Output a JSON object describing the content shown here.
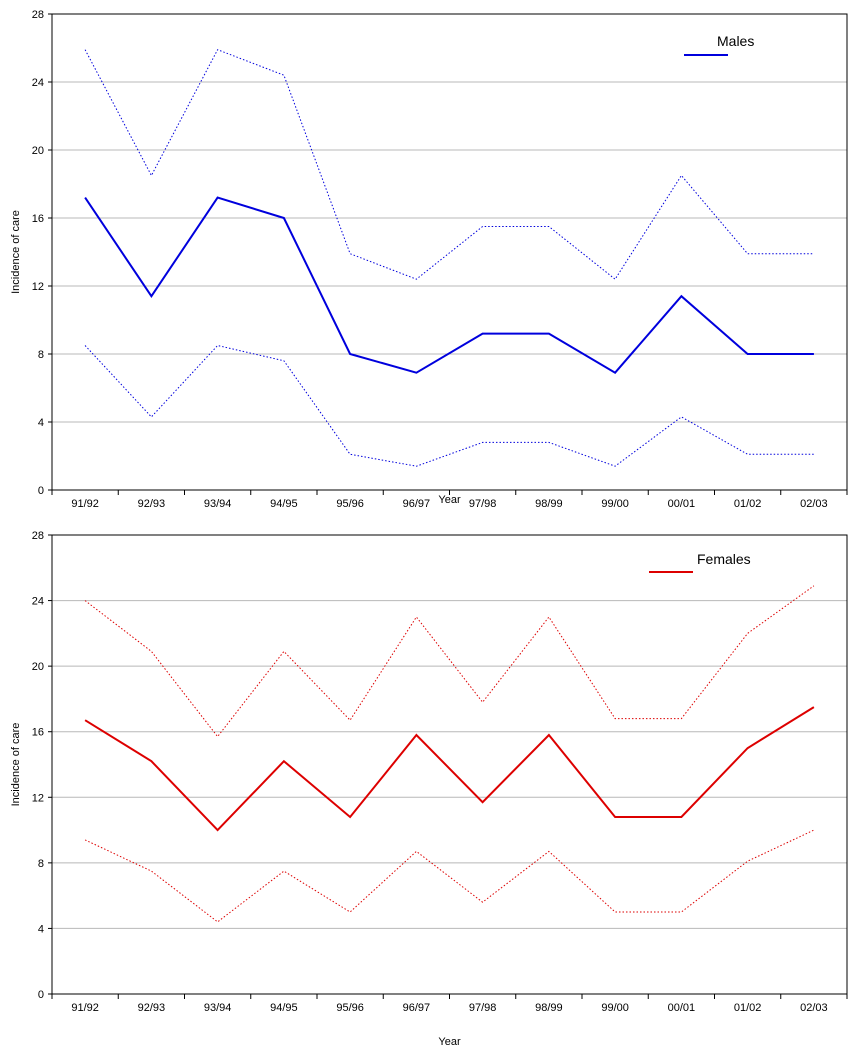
{
  "chart_data": [
    {
      "type": "line",
      "categories": [
        "91/92",
        "92/93",
        "93/94",
        "94/95",
        "95/96",
        "96/97",
        "97/98",
        "98/99",
        "99/00",
        "00/01",
        "01/02",
        "02/03"
      ],
      "xlabel": "Year",
      "ylabel": "Incidence of care",
      "ylim": [
        0,
        28
      ],
      "yticks": [
        0,
        4,
        8,
        12,
        16,
        20,
        24,
        28
      ],
      "grid": "horizontal",
      "legend_position": "top-right",
      "color": "#0000dd",
      "series": [
        {
          "name": "Males",
          "role": "estimate",
          "style": "solid",
          "values": [
            17.2,
            11.4,
            17.2,
            16.0,
            8.0,
            6.9,
            9.2,
            9.2,
            6.9,
            11.4,
            8.0,
            8.0
          ]
        },
        {
          "role": "upper",
          "style": "dotted",
          "values": [
            25.9,
            18.5,
            25.9,
            24.4,
            13.9,
            12.4,
            15.5,
            15.5,
            12.4,
            18.5,
            13.9,
            13.9
          ]
        },
        {
          "role": "lower",
          "style": "dotted",
          "values": [
            8.5,
            4.3,
            8.5,
            7.6,
            2.1,
            1.4,
            2.8,
            2.8,
            1.4,
            4.3,
            2.1,
            2.1
          ]
        }
      ]
    },
    {
      "type": "line",
      "categories": [
        "91/92",
        "92/93",
        "93/94",
        "94/95",
        "95/96",
        "96/97",
        "97/98",
        "98/99",
        "99/00",
        "00/01",
        "01/02",
        "02/03"
      ],
      "xlabel": "Year",
      "ylabel": "Incidence of care",
      "ylim": [
        0,
        28
      ],
      "yticks": [
        0,
        4,
        8,
        12,
        16,
        20,
        24,
        28
      ],
      "grid": "horizontal",
      "legend_position": "top-right",
      "color": "#dd0000",
      "series": [
        {
          "name": "Females",
          "role": "estimate",
          "style": "solid",
          "values": [
            16.7,
            14.2,
            10.0,
            14.2,
            10.8,
            15.8,
            11.7,
            15.8,
            10.8,
            10.8,
            15.0,
            17.5
          ]
        },
        {
          "role": "upper",
          "style": "dotted",
          "values": [
            24.0,
            20.9,
            15.7,
            20.9,
            16.7,
            23.0,
            17.8,
            23.0,
            16.8,
            16.8,
            22.0,
            24.9
          ]
        },
        {
          "role": "lower",
          "style": "dotted",
          "values": [
            9.4,
            7.5,
            4.4,
            7.5,
            5.0,
            8.7,
            5.6,
            8.7,
            5.0,
            5.0,
            8.1,
            10.0
          ]
        }
      ]
    }
  ]
}
